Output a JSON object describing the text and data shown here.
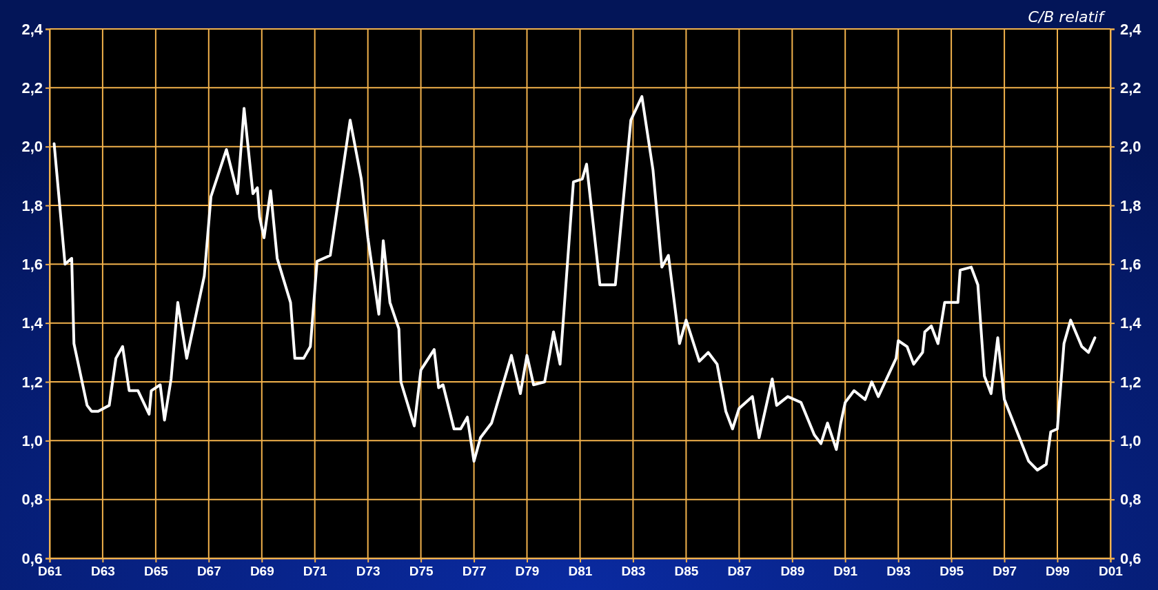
{
  "chart_data": {
    "type": "line",
    "y2label": "C/B relatif",
    "xlim": [
      "1961-12",
      "2001-12"
    ],
    "xticks": [
      {
        "value": "1961-12",
        "label": "D61"
      },
      {
        "value": "1963-12",
        "label": "D63"
      },
      {
        "value": "1965-12",
        "label": "D65"
      },
      {
        "value": "1967-12",
        "label": "D67"
      },
      {
        "value": "1969-12",
        "label": "D69"
      },
      {
        "value": "1971-12",
        "label": "D71"
      },
      {
        "value": "1973-12",
        "label": "D73"
      },
      {
        "value": "1975-12",
        "label": "D75"
      },
      {
        "value": "1977-12",
        "label": "D77"
      },
      {
        "value": "1979-12",
        "label": "D79"
      },
      {
        "value": "1981-12",
        "label": "D81"
      },
      {
        "value": "1983-12",
        "label": "D83"
      },
      {
        "value": "1985-12",
        "label": "D85"
      },
      {
        "value": "1987-12",
        "label": "D87"
      },
      {
        "value": "1989-12",
        "label": "D89"
      },
      {
        "value": "1991-12",
        "label": "D91"
      },
      {
        "value": "1993-12",
        "label": "D93"
      },
      {
        "value": "1995-12",
        "label": "D95"
      },
      {
        "value": "1997-12",
        "label": "D97"
      },
      {
        "value": "1999-12",
        "label": "D99"
      },
      {
        "value": "2001-12",
        "label": "D01"
      }
    ],
    "ylim": [
      0.6,
      2.4
    ],
    "yticks": [
      {
        "value": 0.6,
        "label": "0,6"
      },
      {
        "value": 0.8,
        "label": "0,8"
      },
      {
        "value": 1.0,
        "label": "1,0"
      },
      {
        "value": 1.2,
        "label": "1,2"
      },
      {
        "value": 1.4,
        "label": "1,4"
      },
      {
        "value": 1.6,
        "label": "1,6"
      },
      {
        "value": 1.8,
        "label": "1,8"
      },
      {
        "value": 2.0,
        "label": "2,0"
      },
      {
        "value": 2.2,
        "label": "2,2"
      },
      {
        "value": 2.4,
        "label": "2,4"
      }
    ],
    "y2lim": [
      0.6,
      2.4
    ],
    "y2ticks": [
      {
        "value": 0.6,
        "label": "0,6"
      },
      {
        "value": 0.8,
        "label": "0,8"
      },
      {
        "value": 1.0,
        "label": "1,0"
      },
      {
        "value": 1.2,
        "label": "1,2"
      },
      {
        "value": 1.4,
        "label": "1,4"
      },
      {
        "value": 1.6,
        "label": "1,6"
      },
      {
        "value": 1.8,
        "label": "1,8"
      },
      {
        "value": 2.0,
        "label": "2,0"
      },
      {
        "value": 2.2,
        "label": "2,2"
      },
      {
        "value": 2.4,
        "label": "2,4"
      }
    ],
    "grid": true,
    "marker": "none",
    "line_style": "solid",
    "series": [
      {
        "color": "#ffffff",
        "x": [
          "1962-02",
          "1962-07",
          "1962-10",
          "1962-11",
          "1963-05",
          "1963-07",
          "1963-10",
          "1964-03",
          "1964-06",
          "1964-09",
          "1964-12",
          "1965-04",
          "1965-09",
          "1965-10",
          "1966-02",
          "1966-04",
          "1966-07",
          "1966-10",
          "1967-02",
          "1967-10",
          "1968-01",
          "1968-08",
          "1969-01",
          "1969-04",
          "1969-08",
          "1969-10",
          "1969-11",
          "1970-01",
          "1970-04",
          "1970-07",
          "1971-01",
          "1971-03",
          "1971-07",
          "1971-10",
          "1972-01",
          "1972-07",
          "1973-04",
          "1973-09",
          "1973-12",
          "1974-05",
          "1974-07",
          "1974-10",
          "1975-02",
          "1975-03",
          "1975-09",
          "1975-12",
          "1976-06",
          "1976-08",
          "1976-10",
          "1977-03",
          "1977-06",
          "1977-09",
          "1977-12",
          "1978-03",
          "1978-08",
          "1979-05",
          "1979-09",
          "1979-12",
          "1980-03",
          "1980-08",
          "1980-12",
          "1981-03",
          "1981-09",
          "1982-01",
          "1982-03",
          "1982-09",
          "1983-04",
          "1983-11",
          "1984-04",
          "1984-09",
          "1985-01",
          "1985-04",
          "1985-09",
          "1985-12",
          "1986-06",
          "1986-10",
          "1987-02",
          "1987-06",
          "1987-09",
          "1987-12",
          "1988-06",
          "1988-09",
          "1989-03",
          "1989-05",
          "1989-10",
          "1990-04",
          "1990-10",
          "1991-01",
          "1991-04",
          "1991-08",
          "1991-10",
          "1991-12",
          "1992-04",
          "1992-09",
          "1992-12",
          "1993-03",
          "1993-11",
          "1993-12",
          "1994-04",
          "1994-07",
          "1994-11",
          "1994-12",
          "1995-03",
          "1995-06",
          "1995-09",
          "1996-03",
          "1996-04",
          "1996-09",
          "1996-12",
          "1997-03",
          "1997-06",
          "1997-09",
          "1997-12",
          "1998-11",
          "1999-03",
          "1999-07",
          "1999-09",
          "1999-12",
          "2000-03",
          "2000-06",
          "2000-11",
          "2001-02",
          "2001-05"
        ],
        "values": [
          2.01,
          1.6,
          1.62,
          1.33,
          1.12,
          1.1,
          1.1,
          1.12,
          1.28,
          1.32,
          1.17,
          1.17,
          1.09,
          1.17,
          1.19,
          1.07,
          1.21,
          1.47,
          1.28,
          1.56,
          1.83,
          1.99,
          1.84,
          2.13,
          1.84,
          1.86,
          1.76,
          1.69,
          1.85,
          1.62,
          1.47,
          1.28,
          1.28,
          1.32,
          1.61,
          1.63,
          2.09,
          1.89,
          1.69,
          1.43,
          1.68,
          1.47,
          1.38,
          1.2,
          1.05,
          1.24,
          1.31,
          1.18,
          1.19,
          1.04,
          1.04,
          1.08,
          0.93,
          1.01,
          1.06,
          1.29,
          1.16,
          1.29,
          1.19,
          1.2,
          1.37,
          1.26,
          1.88,
          1.89,
          1.94,
          1.53,
          1.53,
          2.09,
          2.17,
          1.92,
          1.59,
          1.63,
          1.33,
          1.41,
          1.27,
          1.3,
          1.26,
          1.1,
          1.04,
          1.11,
          1.15,
          1.01,
          1.21,
          1.12,
          1.15,
          1.13,
          1.02,
          0.99,
          1.06,
          0.97,
          1.06,
          1.13,
          1.17,
          1.14,
          1.2,
          1.15,
          1.28,
          1.34,
          1.32,
          1.26,
          1.3,
          1.37,
          1.39,
          1.33,
          1.47,
          1.47,
          1.58,
          1.59,
          1.53,
          1.22,
          1.16,
          1.35,
          1.14,
          0.93,
          0.9,
          0.92,
          1.03,
          1.04,
          1.33,
          1.41,
          1.32,
          1.3,
          1.35
        ]
      }
    ]
  }
}
